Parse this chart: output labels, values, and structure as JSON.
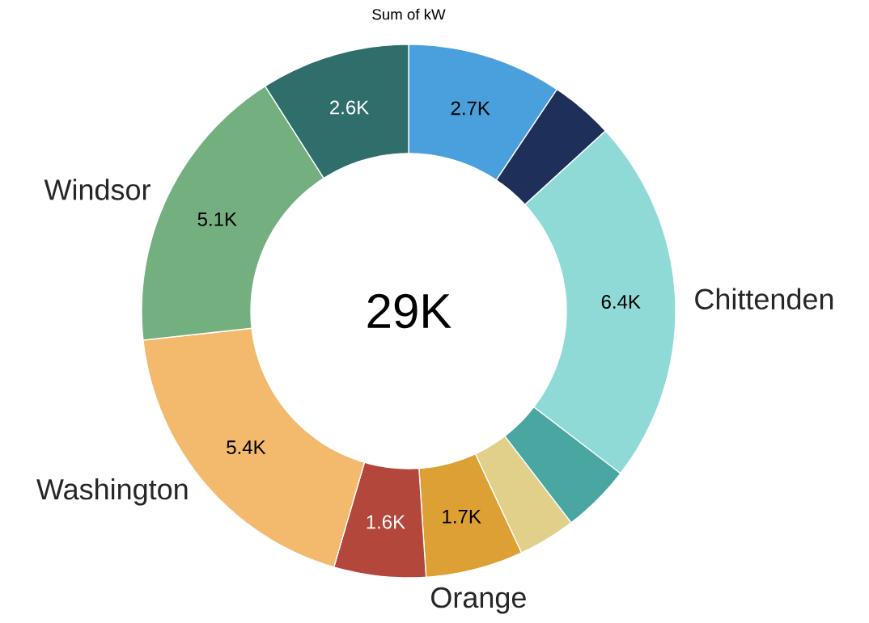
{
  "chart_data": {
    "type": "donut",
    "title": "Sum of kW",
    "categories": [
      null,
      null,
      "Chittenden",
      null,
      null,
      "Orange",
      null,
      "Washington",
      "Windsor",
      null
    ],
    "values": [
      2.7,
      1.1,
      6.4,
      1.2,
      1.0,
      1.7,
      1.6,
      5.4,
      5.1,
      2.6
    ],
    "colors": [
      "#4aa0dc",
      "#1e2f5a",
      "#8fdad6",
      "#4aa6a0",
      "#e0d08a",
      "#dda035",
      "#b3473c",
      "#f3b96d",
      "#74b07f",
      "#2f6e6b"
    ],
    "value_labels": [
      "2.7K",
      null,
      "6.4K",
      null,
      null,
      "1.7K",
      "1.6K",
      "5.4K",
      "5.1K",
      "2.6K"
    ],
    "annotations": [
      "29K"
    ]
  }
}
